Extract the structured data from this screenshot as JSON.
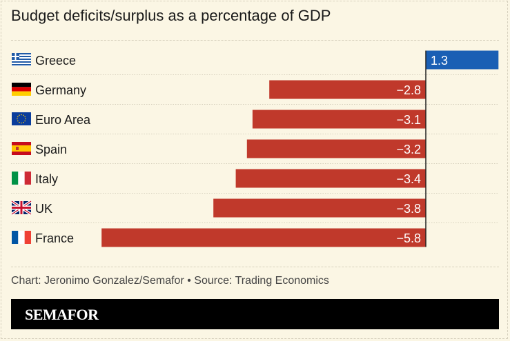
{
  "chart_data": {
    "type": "bar",
    "orientation": "horizontal",
    "title": "Budget deficits/surplus as a percentage of GDP",
    "categories": [
      "Greece",
      "Germany",
      "Euro Area",
      "Spain",
      "Italy",
      "UK",
      "France"
    ],
    "values": [
      1.3,
      -2.8,
      -3.1,
      -3.2,
      -3.4,
      -3.8,
      -5.8
    ],
    "labels": [
      "1.3",
      "−2.8",
      "−3.1",
      "−3.2",
      "−3.4",
      "−3.8",
      "−5.8"
    ],
    "flags": [
      "greece-flag",
      "germany-flag",
      "eu-flag",
      "spain-flag",
      "italy-flag",
      "uk-flag",
      "france-flag"
    ],
    "colors": {
      "positive": "#1a5fb4",
      "negative": "#c0392b"
    },
    "xlim": [
      -5.8,
      1.3
    ]
  },
  "footer": {
    "credit": "Chart: Jeronimo Gonzalez/Semafor • Source: Trading Economics",
    "brand": "SEMAFOR"
  }
}
